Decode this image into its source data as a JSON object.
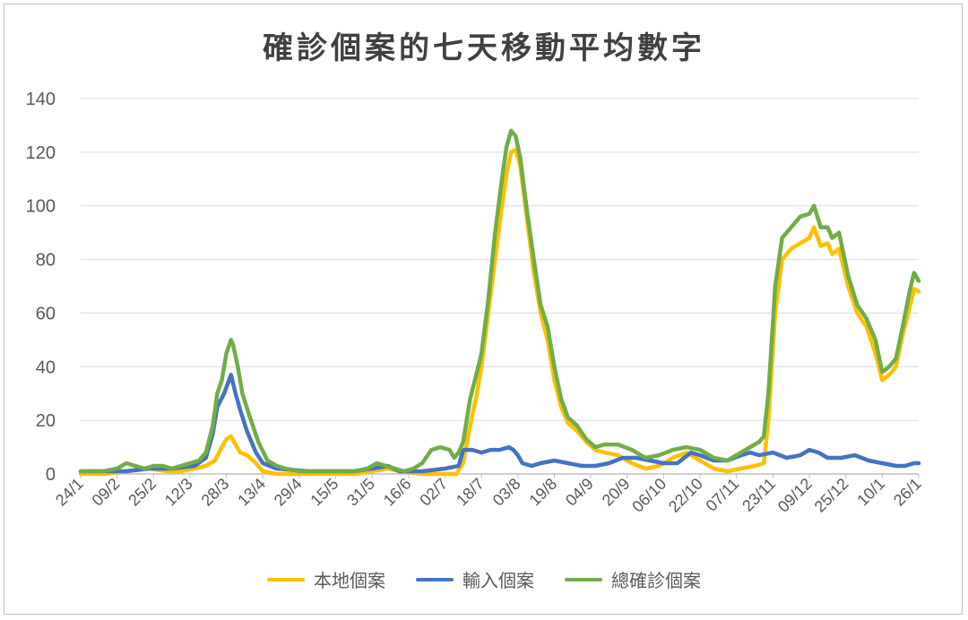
{
  "chart_data": {
    "type": "line",
    "title": "確診個案的七天移動平均數字",
    "ylim": [
      0,
      140
    ],
    "yticks": [
      "0",
      "20",
      "40",
      "60",
      "80",
      "100",
      "120",
      "140"
    ],
    "x_tick_labels": [
      "24/1",
      "09/2",
      "25/2",
      "12/3",
      "28/3",
      "13/4",
      "29/4",
      "15/5",
      "31/5",
      "16/6",
      "02/7",
      "18/7",
      "03/8",
      "19/8",
      "04/9",
      "20/9",
      "06/10",
      "22/10",
      "07/11",
      "23/11",
      "09/12",
      "25/12",
      "10/1",
      "26/1"
    ],
    "x_days": [
      0,
      16,
      32,
      48,
      64,
      80,
      96,
      112,
      128,
      144,
      160,
      176,
      192,
      208,
      224,
      240,
      256,
      272,
      288,
      304,
      320,
      336,
      352,
      368
    ],
    "x_range": [
      0,
      368
    ],
    "grid": true,
    "legend_position": "bottom",
    "series": [
      {
        "name": "本地個案",
        "color": "#FFC000",
        "points": [
          [
            0,
            0
          ],
          [
            10,
            0
          ],
          [
            20,
            1
          ],
          [
            30,
            2
          ],
          [
            38,
            1
          ],
          [
            44,
            1
          ],
          [
            50,
            2
          ],
          [
            55,
            3
          ],
          [
            59,
            5
          ],
          [
            62,
            10
          ],
          [
            64,
            13
          ],
          [
            66,
            14
          ],
          [
            68,
            11
          ],
          [
            70,
            8
          ],
          [
            73,
            7
          ],
          [
            77,
            4
          ],
          [
            80,
            1
          ],
          [
            86,
            0
          ],
          [
            100,
            0
          ],
          [
            120,
            0
          ],
          [
            128,
            1
          ],
          [
            135,
            2
          ],
          [
            140,
            1
          ],
          [
            150,
            0
          ],
          [
            160,
            0
          ],
          [
            165,
            0
          ],
          [
            168,
            4
          ],
          [
            171,
            18
          ],
          [
            174,
            30
          ],
          [
            176,
            40
          ],
          [
            179,
            60
          ],
          [
            182,
            80
          ],
          [
            185,
            100
          ],
          [
            187,
            112
          ],
          [
            189,
            120
          ],
          [
            191,
            121
          ],
          [
            193,
            115
          ],
          [
            196,
            95
          ],
          [
            199,
            75
          ],
          [
            202,
            60
          ],
          [
            205,
            50
          ],
          [
            208,
            35
          ],
          [
            211,
            25
          ],
          [
            214,
            19
          ],
          [
            218,
            16
          ],
          [
            222,
            12
          ],
          [
            226,
            9
          ],
          [
            230,
            8
          ],
          [
            236,
            7
          ],
          [
            242,
            4
          ],
          [
            248,
            2
          ],
          [
            254,
            3
          ],
          [
            260,
            6
          ],
          [
            266,
            8
          ],
          [
            272,
            5
          ],
          [
            278,
            2
          ],
          [
            284,
            1
          ],
          [
            290,
            2
          ],
          [
            296,
            3
          ],
          [
            300,
            4
          ],
          [
            302,
            20
          ],
          [
            305,
            60
          ],
          [
            308,
            80
          ],
          [
            312,
            84
          ],
          [
            316,
            86
          ],
          [
            320,
            88
          ],
          [
            322,
            92
          ],
          [
            325,
            85
          ],
          [
            328,
            86
          ],
          [
            330,
            82
          ],
          [
            333,
            84
          ],
          [
            337,
            70
          ],
          [
            341,
            60
          ],
          [
            345,
            55
          ],
          [
            349,
            45
          ],
          [
            352,
            35
          ],
          [
            355,
            37
          ],
          [
            358,
            40
          ],
          [
            361,
            52
          ],
          [
            364,
            62
          ],
          [
            366,
            69
          ],
          [
            368,
            68
          ]
        ]
      },
      {
        "name": "輸入個案",
        "color": "#4472C4",
        "points": [
          [
            0,
            1
          ],
          [
            10,
            1
          ],
          [
            20,
            1
          ],
          [
            30,
            2
          ],
          [
            40,
            2
          ],
          [
            50,
            3
          ],
          [
            55,
            6
          ],
          [
            58,
            15
          ],
          [
            60,
            25
          ],
          [
            63,
            30
          ],
          [
            66,
            37
          ],
          [
            68,
            30
          ],
          [
            70,
            24
          ],
          [
            73,
            16
          ],
          [
            77,
            8
          ],
          [
            80,
            4
          ],
          [
            86,
            2
          ],
          [
            100,
            1
          ],
          [
            120,
            1
          ],
          [
            128,
            2
          ],
          [
            135,
            3
          ],
          [
            140,
            1
          ],
          [
            150,
            1
          ],
          [
            160,
            2
          ],
          [
            166,
            3
          ],
          [
            168,
            9
          ],
          [
            172,
            9
          ],
          [
            176,
            8
          ],
          [
            180,
            9
          ],
          [
            184,
            9
          ],
          [
            188,
            10
          ],
          [
            190,
            9
          ],
          [
            192,
            7
          ],
          [
            194,
            4
          ],
          [
            198,
            3
          ],
          [
            202,
            4
          ],
          [
            208,
            5
          ],
          [
            214,
            4
          ],
          [
            220,
            3
          ],
          [
            226,
            3
          ],
          [
            232,
            4
          ],
          [
            238,
            6
          ],
          [
            244,
            6
          ],
          [
            250,
            5
          ],
          [
            256,
            4
          ],
          [
            262,
            4
          ],
          [
            268,
            8
          ],
          [
            272,
            7
          ],
          [
            278,
            5
          ],
          [
            284,
            5
          ],
          [
            290,
            7
          ],
          [
            294,
            8
          ],
          [
            298,
            7
          ],
          [
            304,
            8
          ],
          [
            310,
            6
          ],
          [
            316,
            7
          ],
          [
            320,
            9
          ],
          [
            324,
            8
          ],
          [
            328,
            6
          ],
          [
            334,
            6
          ],
          [
            340,
            7
          ],
          [
            346,
            5
          ],
          [
            352,
            4
          ],
          [
            358,
            3
          ],
          [
            362,
            3
          ],
          [
            366,
            4
          ],
          [
            368,
            4
          ]
        ]
      },
      {
        "name": "總確診個案",
        "color": "#70AD47",
        "points": [
          [
            0,
            1
          ],
          [
            10,
            1
          ],
          [
            16,
            2
          ],
          [
            20,
            4
          ],
          [
            24,
            3
          ],
          [
            28,
            2
          ],
          [
            32,
            3
          ],
          [
            36,
            3
          ],
          [
            40,
            2
          ],
          [
            44,
            3
          ],
          [
            48,
            4
          ],
          [
            52,
            5
          ],
          [
            55,
            8
          ],
          [
            58,
            18
          ],
          [
            60,
            30
          ],
          [
            62,
            35
          ],
          [
            64,
            45
          ],
          [
            66,
            50
          ],
          [
            67,
            48
          ],
          [
            69,
            40
          ],
          [
            71,
            30
          ],
          [
            74,
            22
          ],
          [
            78,
            12
          ],
          [
            82,
            5
          ],
          [
            86,
            3
          ],
          [
            90,
            2
          ],
          [
            96,
            1
          ],
          [
            110,
            1
          ],
          [
            120,
            1
          ],
          [
            126,
            2
          ],
          [
            130,
            4
          ],
          [
            134,
            3
          ],
          [
            138,
            2
          ],
          [
            142,
            1
          ],
          [
            146,
            2
          ],
          [
            150,
            4
          ],
          [
            154,
            9
          ],
          [
            158,
            10
          ],
          [
            162,
            9
          ],
          [
            164,
            6
          ],
          [
            166,
            8
          ],
          [
            168,
            12
          ],
          [
            171,
            28
          ],
          [
            174,
            38
          ],
          [
            176,
            45
          ],
          [
            179,
            65
          ],
          [
            182,
            90
          ],
          [
            185,
            110
          ],
          [
            187,
            122
          ],
          [
            189,
            128
          ],
          [
            191,
            126
          ],
          [
            193,
            118
          ],
          [
            196,
            98
          ],
          [
            199,
            80
          ],
          [
            202,
            63
          ],
          [
            205,
            55
          ],
          [
            208,
            40
          ],
          [
            211,
            28
          ],
          [
            214,
            21
          ],
          [
            218,
            18
          ],
          [
            222,
            13
          ],
          [
            226,
            10
          ],
          [
            230,
            11
          ],
          [
            236,
            11
          ],
          [
            242,
            9
          ],
          [
            248,
            6
          ],
          [
            254,
            7
          ],
          [
            260,
            9
          ],
          [
            266,
            10
          ],
          [
            272,
            9
          ],
          [
            278,
            6
          ],
          [
            284,
            5
          ],
          [
            290,
            8
          ],
          [
            294,
            10
          ],
          [
            298,
            12
          ],
          [
            300,
            14
          ],
          [
            302,
            30
          ],
          [
            305,
            70
          ],
          [
            308,
            88
          ],
          [
            312,
            92
          ],
          [
            316,
            96
          ],
          [
            320,
            97
          ],
          [
            322,
            100
          ],
          [
            325,
            92
          ],
          [
            328,
            92
          ],
          [
            330,
            88
          ],
          [
            333,
            90
          ],
          [
            337,
            74
          ],
          [
            341,
            63
          ],
          [
            345,
            58
          ],
          [
            349,
            50
          ],
          [
            352,
            38
          ],
          [
            355,
            40
          ],
          [
            358,
            43
          ],
          [
            361,
            55
          ],
          [
            364,
            68
          ],
          [
            366,
            75
          ],
          [
            368,
            72
          ]
        ]
      }
    ]
  }
}
